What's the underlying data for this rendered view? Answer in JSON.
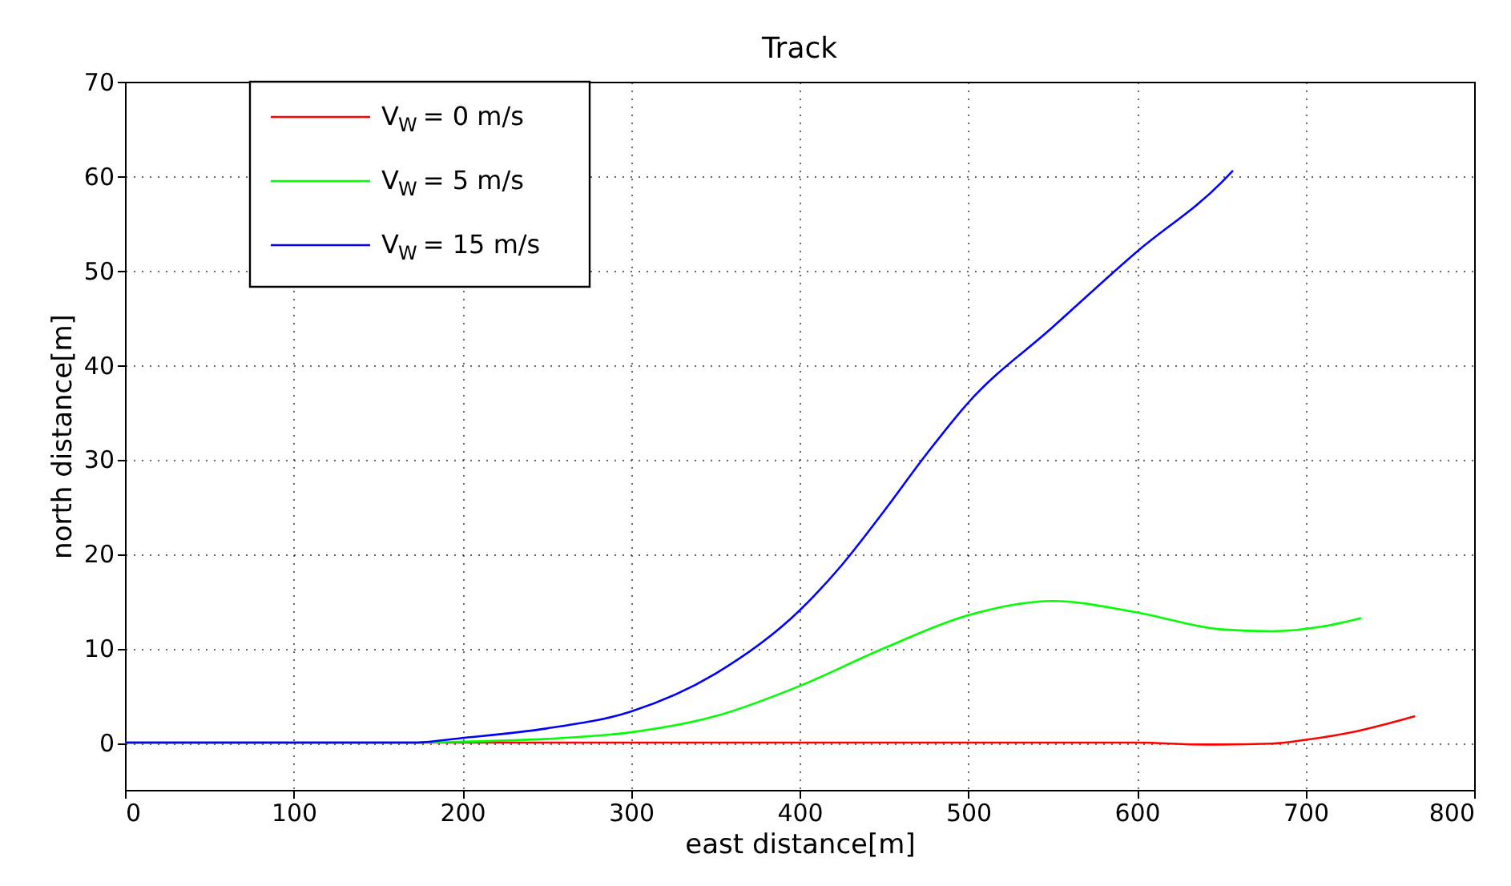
{
  "chart_data": {
    "type": "line",
    "title": "Track",
    "xlabel": "east distance[m]",
    "ylabel": "north distance[m]",
    "xlim": [
      0,
      800
    ],
    "ylim": [
      -5,
      70
    ],
    "xticks": [
      0,
      100,
      200,
      300,
      400,
      500,
      600,
      700,
      800
    ],
    "yticks": [
      0,
      10,
      20,
      30,
      40,
      50,
      60,
      70
    ],
    "grid": true,
    "legend": "top left",
    "line_style": "solid",
    "marker": "none",
    "series": [
      {
        "name": "V$_{W}$ = 0 m/s",
        "color": "#ff0000",
        "x": [
          0,
          100,
          200,
          300,
          400,
          500,
          550,
          600,
          640,
          680,
          700,
          730,
          765
        ],
        "values": [
          0,
          0,
          0,
          0,
          0,
          0,
          0,
          0,
          -0.2,
          -0.1,
          0.3,
          1.2,
          2.8
        ]
      },
      {
        "name": "V$_{W}$ = 5 m/s",
        "color": "#00ff00",
        "x": [
          0,
          100,
          170,
          200,
          250,
          300,
          350,
          400,
          450,
          500,
          550,
          600,
          650,
          680,
          710,
          733
        ],
        "values": [
          0,
          0,
          0,
          0.1,
          0.4,
          1.1,
          2.8,
          6,
          10,
          13.5,
          15,
          13.8,
          12,
          11.8,
          12.3,
          13.2
        ]
      },
      {
        "name": "V$_{W}$ = 15 m/s",
        "color": "#0000ff",
        "x": [
          0,
          100,
          170,
          200,
          250,
          300,
          350,
          400,
          425,
          450,
          475,
          500,
          550,
          600,
          650,
          657
        ],
        "values": [
          0,
          0,
          0,
          0.5,
          1.5,
          3.3,
          7.3,
          14,
          18.8,
          24.5,
          30.5,
          36,
          44,
          52,
          59.3,
          60.6
        ]
      }
    ]
  }
}
